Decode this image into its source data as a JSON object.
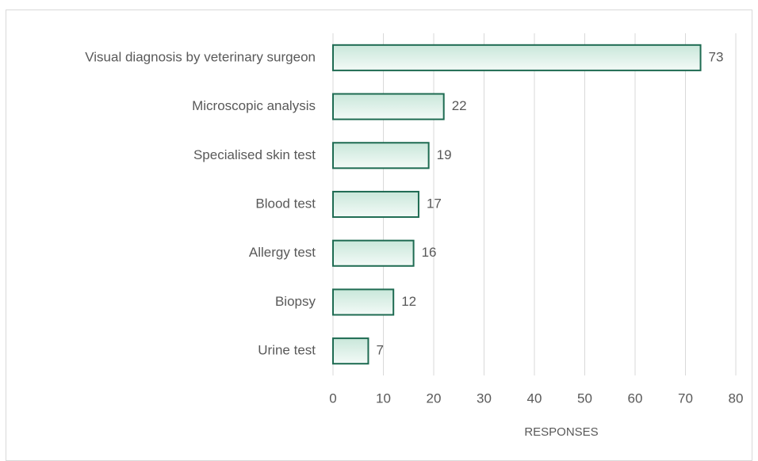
{
  "chart_data": {
    "type": "bar",
    "orientation": "horizontal",
    "categories": [
      "Visual diagnosis by veterinary surgeon",
      "Microscopic analysis",
      "Specialised skin test",
      "Blood test",
      "Allergy test",
      "Biopsy",
      "Urine test"
    ],
    "values": [
      73,
      22,
      19,
      17,
      16,
      12,
      7
    ],
    "color": "#1e6b52",
    "x_label": "RESPONSES",
    "xlim": [
      0,
      80
    ],
    "xticks": [
      0,
      10,
      20,
      30,
      40,
      50,
      60,
      70,
      80
    ],
    "grid": true
  }
}
